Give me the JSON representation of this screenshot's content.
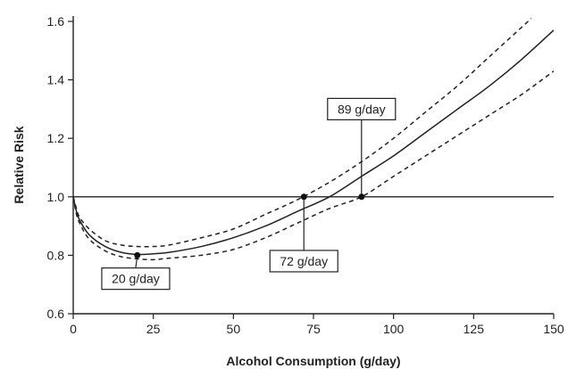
{
  "chart_data": {
    "type": "line",
    "xlabel": "Alcohol Consumption (g/day)",
    "ylabel": "Relative Risk",
    "xlim": [
      0,
      150
    ],
    "ylim": [
      0.6,
      1.6
    ],
    "xticks": [
      "0",
      "25",
      "50",
      "75",
      "100",
      "125",
      "150"
    ],
    "yticks": [
      "0.6",
      "0.8",
      "1.0",
      "1.2",
      "1.4",
      "1.6"
    ],
    "grid": false,
    "reference_line": {
      "y": 1.0
    },
    "series": [
      {
        "style": "solid",
        "x": [
          0,
          1,
          2,
          5,
          10,
          15,
          20,
          25,
          30,
          40,
          50,
          60,
          70,
          80,
          90,
          100,
          110,
          120,
          130,
          140,
          150
        ],
        "y": [
          1.0,
          0.95,
          0.92,
          0.87,
          0.83,
          0.81,
          0.803,
          0.805,
          0.81,
          0.83,
          0.86,
          0.9,
          0.95,
          1.0,
          1.07,
          1.14,
          1.22,
          1.3,
          1.38,
          1.47,
          1.57
        ]
      },
      {
        "style": "dashed",
        "x": [
          0,
          1,
          2,
          5,
          10,
          15,
          20,
          25,
          30,
          40,
          50,
          60,
          70,
          80,
          90,
          100,
          110,
          120,
          130,
          140,
          143
        ],
        "y": [
          1.0,
          0.96,
          0.93,
          0.89,
          0.85,
          0.835,
          0.83,
          0.83,
          0.835,
          0.86,
          0.89,
          0.94,
          0.99,
          1.05,
          1.12,
          1.2,
          1.29,
          1.38,
          1.48,
          1.58,
          1.61
        ]
      },
      {
        "style": "dashed",
        "x": [
          0,
          1,
          2,
          5,
          10,
          15,
          20,
          25,
          30,
          40,
          50,
          60,
          70,
          80,
          90,
          100,
          110,
          120,
          130,
          140,
          150
        ],
        "y": [
          1.0,
          0.94,
          0.91,
          0.855,
          0.815,
          0.795,
          0.788,
          0.785,
          0.79,
          0.8,
          0.82,
          0.86,
          0.91,
          0.96,
          1.0,
          1.07,
          1.14,
          1.21,
          1.28,
          1.35,
          1.43
        ]
      }
    ],
    "points": [
      {
        "x": 20,
        "y": 0.8
      },
      {
        "x": 72,
        "y": 1.0
      },
      {
        "x": 90,
        "y": 1.0
      }
    ],
    "annotations": [
      {
        "text": "20 g/day",
        "x": 20,
        "y": 0.8,
        "box_x": 19.5,
        "box_y": 0.72
      },
      {
        "text": "72 g/day",
        "x": 72,
        "y": 1.0,
        "box_x": 72,
        "box_y": 0.78
      },
      {
        "text": "89 g/day",
        "x": 90,
        "y": 1.0,
        "box_x": 90,
        "box_y": 1.3
      }
    ]
  }
}
